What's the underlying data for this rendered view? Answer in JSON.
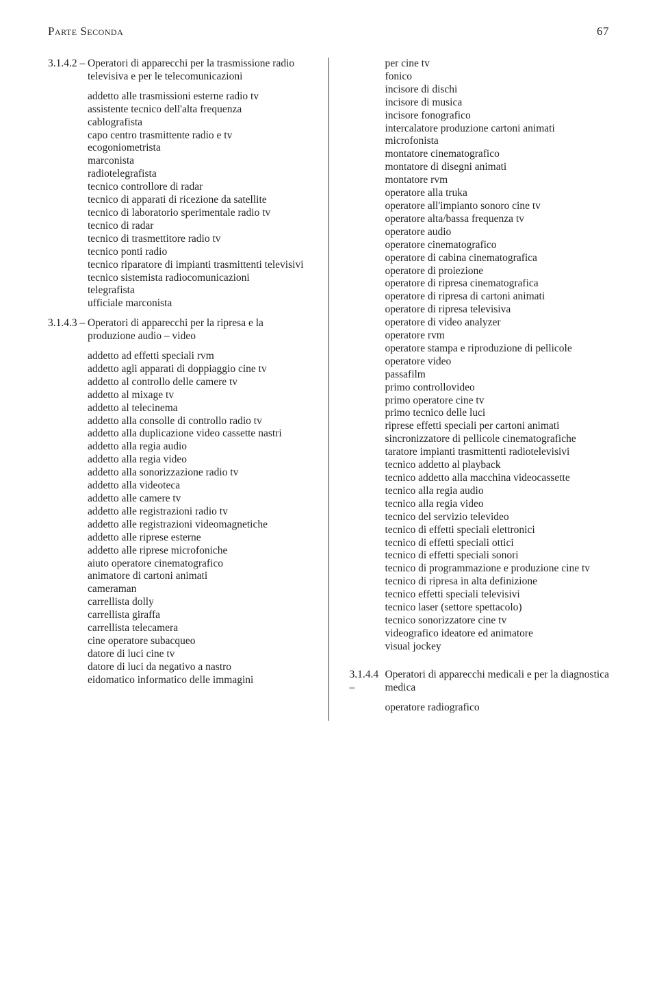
{
  "header": {
    "title": "Parte Seconda",
    "page_number": "67"
  },
  "left_column": {
    "sections": [
      {
        "num": "3.1.4.2 –",
        "title": "Operatori di apparecchi per la trasmissione radio televisiva e per le telecomunicazioni",
        "terms": [
          "addetto alle trasmissioni esterne radio tv",
          "assistente tecnico dell'alta frequenza",
          "cablografista",
          "capo centro trasmittente radio e tv",
          "ecogoniometrista",
          "marconista",
          "radiotelegrafista",
          "tecnico controllore di radar",
          "tecnico di apparati di ricezione da satellite",
          "tecnico di laboratorio sperimentale radio tv",
          "tecnico di radar",
          "tecnico di trasmettitore radio tv",
          "tecnico ponti radio",
          "tecnico riparatore di impianti trasmittenti televisivi",
          "tecnico sistemista radiocomunicazioni",
          "telegrafista",
          "ufficiale marconista"
        ]
      },
      {
        "num": "3.1.4.3 –",
        "title": "Operatori di apparecchi per la ripresa e la produzione audio – video",
        "terms": [
          "addetto ad effetti speciali rvm",
          "addetto agli apparati di doppiaggio cine tv",
          "addetto al controllo delle camere tv",
          "addetto al mixage tv",
          "addetto al telecinema",
          "addetto alla consolle di controllo radio tv",
          "addetto alla duplicazione video cassette nastri",
          "addetto alla regia audio",
          "addetto alla regia video",
          "addetto alla sonorizzazione radio tv",
          "addetto alla videoteca",
          "addetto alle camere tv",
          "addetto alle registrazioni radio tv",
          "addetto alle registrazioni videomagnetiche",
          "addetto alle riprese esterne",
          "addetto alle riprese microfoniche",
          "aiuto operatore cinematografico",
          "animatore di cartoni animati",
          "cameraman",
          "carrellista dolly",
          "carrellista giraffa",
          "carrellista telecamera",
          "cine operatore subacqueo",
          "datore di luci cine tv",
          "datore di luci da negativo a nastro",
          "eidomatico informatico delle immagini"
        ]
      }
    ]
  },
  "right_column": {
    "continuation_terms": [
      "per cine tv",
      "fonico",
      "incisore di dischi",
      "incisore di musica",
      "incisore fonografico",
      "intercalatore produzione cartoni animati",
      "microfonista",
      "montatore cinematografico",
      "montatore di disegni animati",
      "montatore rvm",
      "operatore alla truka",
      "operatore all'impianto sonoro cine tv",
      "operatore alta/bassa frequenza tv",
      "operatore audio",
      "operatore cinematografico",
      "operatore di cabina cinematografica",
      "operatore di proiezione",
      "operatore di ripresa cinematografica",
      "operatore di ripresa di cartoni animati",
      "operatore di ripresa televisiva",
      "operatore di video analyzer",
      "operatore rvm",
      "operatore stampa e riproduzione di pellicole",
      "operatore video",
      "passafilm",
      "primo controllovideo",
      "primo operatore cine tv",
      "primo tecnico delle luci",
      "riprese effetti speciali per cartoni animati",
      "sincronizzatore di pellicole cinematografiche",
      "taratore impianti trasmittenti radiotelevisivi",
      "tecnico addetto al playback",
      "tecnico addetto alla macchina videocassette",
      "tecnico alla regia audio",
      "tecnico alla regia video",
      "tecnico del servizio televideo",
      "tecnico di effetti speciali elettronici",
      "tecnico di effetti speciali ottici",
      "tecnico di effetti speciali sonori",
      "tecnico di programmazione e produzione cine tv",
      "tecnico di ripresa in alta definizione",
      "tecnico effetti speciali televisivi",
      "tecnico laser (settore spettacolo)",
      "tecnico sonorizzatore cine tv",
      "videografico ideatore ed animatore",
      "visual jockey"
    ],
    "section": {
      "num": "3.1.4.4 –",
      "title": "Operatori di apparecchi medicali e per la diagnostica medica",
      "terms": [
        "operatore radiografico"
      ]
    }
  }
}
